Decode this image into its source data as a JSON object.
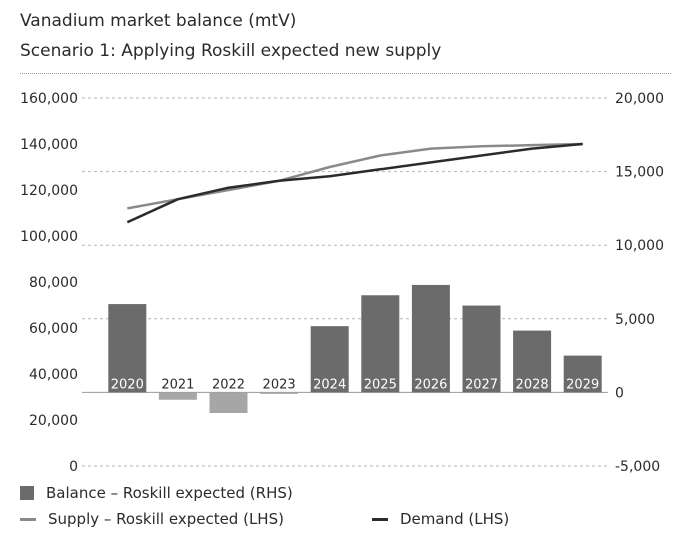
{
  "header": {
    "title": "Vanadium market balance (mtV)",
    "subtitle": "Scenario 1: Applying Roskill expected new supply"
  },
  "legend": {
    "balance": "Balance – Roskill expected (RHS)",
    "supply": "Supply – Roskill expected (LHS)",
    "demand": "Demand (LHS)"
  },
  "colors": {
    "balance_positive": "#6b6b6b",
    "balance_negative": "#a6a6a6",
    "supply": "#8a8a8a",
    "demand": "#2b2b2b"
  },
  "chart_data": {
    "type": "bar",
    "categories": [
      "2020",
      "2021",
      "2022",
      "2023",
      "2024",
      "2025",
      "2026",
      "2027",
      "2028",
      "2029"
    ],
    "left_axis": {
      "ylim": [
        0,
        160000
      ],
      "ticks": [
        "0",
        "20,000",
        "40,000",
        "60,000",
        "80,000",
        "100,000",
        "120,000",
        "140,000",
        "160,000"
      ]
    },
    "right_axis": {
      "ylim": [
        -5000,
        20000
      ],
      "ticks": [
        "-5,000",
        "0",
        "5,000",
        "10,000",
        "15,000",
        "20,000"
      ]
    },
    "series": [
      {
        "name": "Balance – Roskill expected (RHS)",
        "type": "bar",
        "axis": "right",
        "values": [
          6000,
          -500,
          -1400,
          -100,
          4500,
          6600,
          7300,
          5900,
          4200,
          2500
        ]
      },
      {
        "name": "Supply – Roskill expected (LHS)",
        "type": "line",
        "axis": "left",
        "values": [
          112000,
          116000,
          120000,
          124000,
          130000,
          135000,
          138000,
          139000,
          139500,
          140000
        ]
      },
      {
        "name": "Demand (LHS)",
        "type": "line",
        "axis": "left",
        "values": [
          106000,
          116000,
          121000,
          124000,
          126000,
          129000,
          132000,
          135000,
          138000,
          140000
        ]
      }
    ],
    "grid": true
  }
}
